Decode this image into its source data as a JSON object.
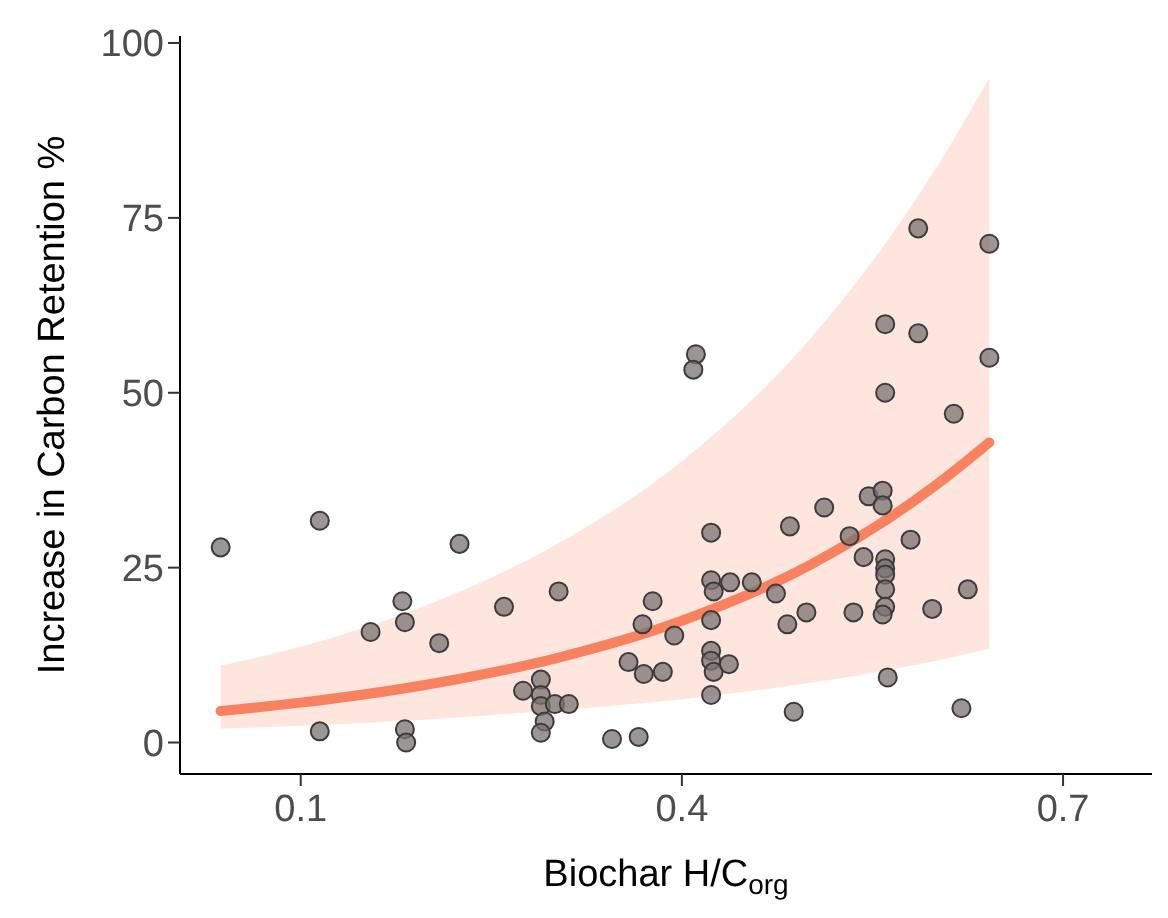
{
  "chart_data": {
    "type": "scatter",
    "xlabel": "Biochar H/C$_{org}$",
    "ylabel": "Increase in Carbon Retention %",
    "xlim": [
      0.005,
      0.77
    ],
    "xticks": [
      0.1,
      0.4,
      0.7
    ],
    "ylim": [
      -4.5,
      101
    ],
    "yticks": [
      0,
      25,
      50,
      75,
      100
    ],
    "grid": false,
    "legend": false,
    "marker": "circle",
    "series": [
      {
        "color": "#7a7272",
        "x": [
          0.037,
          0.115,
          0.225,
          0.18,
          0.155,
          0.182,
          0.209,
          0.26,
          0.303,
          0.115,
          0.182,
          0.183,
          0.289,
          0.275,
          0.289,
          0.289,
          0.3,
          0.311,
          0.292,
          0.289,
          0.345,
          0.366,
          0.358,
          0.37,
          0.377,
          0.369,
          0.411,
          0.409,
          0.56,
          0.586,
          0.642,
          0.56,
          0.614,
          0.423,
          0.485,
          0.512,
          0.547,
          0.558,
          0.558,
          0.532,
          0.58,
          0.543,
          0.56,
          0.56,
          0.56,
          0.56,
          0.56,
          0.558,
          0.597,
          0.625,
          0.535,
          0.498,
          0.483,
          0.474,
          0.455,
          0.438,
          0.423,
          0.425,
          0.423,
          0.394,
          0.385,
          0.423,
          0.423,
          0.425,
          0.437,
          0.423,
          0.488,
          0.562,
          0.62,
          0.586,
          0.642
        ],
        "values": [
          27.9,
          31.7,
          28.4,
          20.2,
          15.8,
          17.2,
          14.2,
          19.4,
          21.6,
          1.6,
          1.9,
          0,
          9,
          7.4,
          6.8,
          5.2,
          5.5,
          5.5,
          3,
          1.4,
          0.5,
          0.8,
          11.5,
          9.8,
          20.2,
          16.9,
          55.5,
          53.3,
          59.8,
          58.5,
          55,
          50,
          47,
          30,
          30.9,
          33.6,
          35.2,
          36,
          33.9,
          29.5,
          29,
          26.5,
          26.2,
          24.9,
          24,
          21.9,
          19.4,
          18.3,
          19.1,
          21.9,
          18.6,
          18.6,
          16.9,
          21.3,
          22.9,
          22.9,
          23.2,
          21.6,
          17.5,
          15.3,
          10.1,
          13.1,
          11.7,
          10.1,
          11.2,
          6.8,
          4.4,
          9.3,
          4.9,
          73.5,
          71.3
        ]
      },
      {
        "type": "line",
        "color": "#f8825f",
        "line_style": "solid",
        "marker": "none",
        "x": [
          0.037,
          0.1,
          0.2,
          0.3,
          0.4,
          0.5,
          0.6,
          0.642
        ],
        "values": [
          4.5,
          5.7,
          8.3,
          12,
          17.4,
          25.3,
          36.8,
          42.9
        ],
        "lower": [
          2,
          2.4,
          3.3,
          4.6,
          6.2,
          8.5,
          11.7,
          13.4
        ],
        "upper": [
          11,
          13.7,
          19.7,
          28.2,
          40.2,
          57.5,
          82.1,
          95
        ]
      }
    ]
  }
}
